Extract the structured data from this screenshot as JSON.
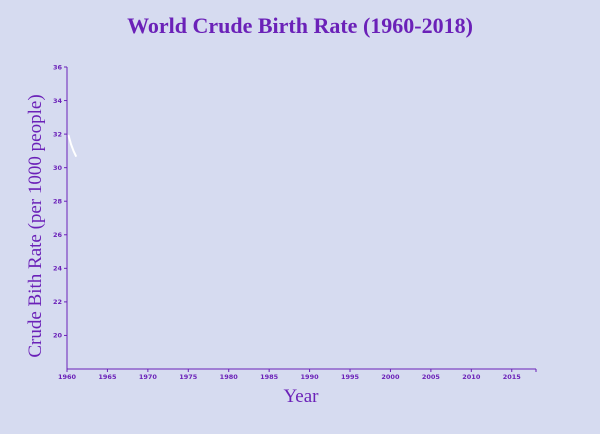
{
  "chart_data": {
    "type": "line",
    "title": "World Crude Birth Rate (1960-2018)",
    "xlabel": "Year",
    "ylabel": "Crude Bith Rate (per 1000 people)",
    "xlim": [
      1960,
      2018
    ],
    "ylim": [
      18,
      36
    ],
    "x_ticks": [
      1960,
      1965,
      1970,
      1975,
      1980,
      1985,
      1990,
      1995,
      2000,
      2005,
      2010,
      2015
    ],
    "y_ticks": [
      20,
      22,
      24,
      26,
      28,
      30,
      32,
      34,
      36
    ],
    "grid": false,
    "series": [
      {
        "color": "#ffffff",
        "x": [
          1960.2,
          1960.5,
          1960.8,
          1961.1
        ],
        "values": [
          31.9,
          31.4,
          31.0,
          30.7
        ]
      }
    ]
  }
}
